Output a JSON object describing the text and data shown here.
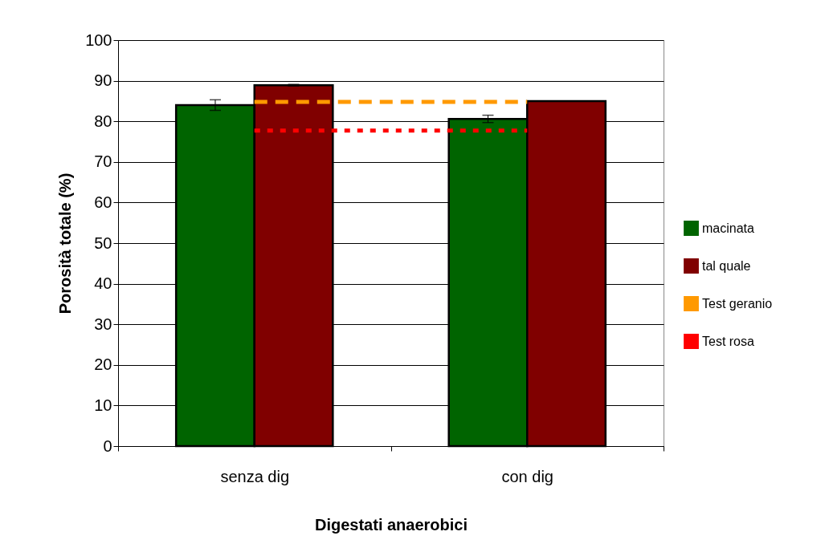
{
  "chart_data": {
    "type": "bar",
    "xlabel": "Digestati anaerobici",
    "ylabel": "Porosità totale (%)",
    "categories": [
      "senza dig",
      "con dig"
    ],
    "series": [
      {
        "name": "macinata",
        "color": "#006400",
        "values": [
          84.0,
          80.6
        ],
        "errors": [
          1.3,
          0.9
        ]
      },
      {
        "name": "tal quale",
        "color": "#800000",
        "values": [
          88.9,
          85.0
        ],
        "errors": [
          0.2,
          null
        ]
      },
      {
        "name": "Test geranio",
        "type": "line",
        "color": "#ff9900",
        "line_style": "dashed",
        "values": [
          84.8,
          84.8
        ]
      },
      {
        "name": "Test rosa",
        "type": "line",
        "color": "#ff0000",
        "line_style": "dotted",
        "values": [
          77.7,
          77.7
        ]
      }
    ],
    "ylim": [
      0,
      100
    ],
    "yticks": [
      0,
      10,
      20,
      30,
      40,
      50,
      60,
      70,
      80,
      90,
      100
    ],
    "grid": "y",
    "legend": "right",
    "marker": "none"
  }
}
